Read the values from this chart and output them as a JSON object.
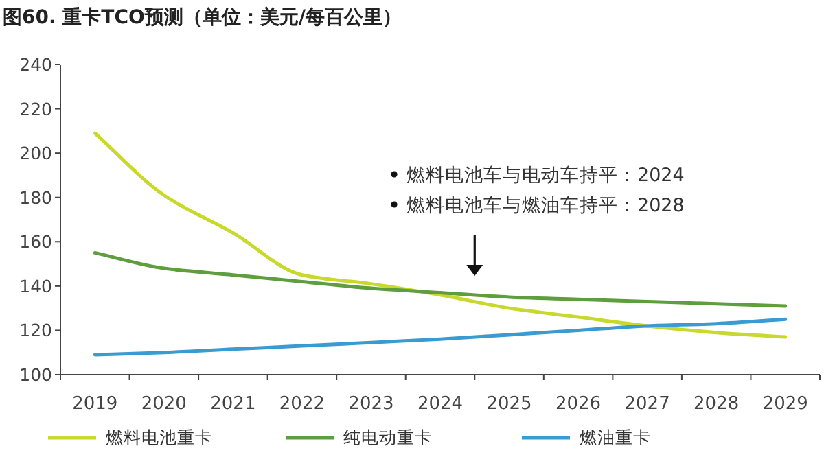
{
  "chart_data": {
    "type": "line",
    "title": "图60. 重卡TCO预测（单位：美元/每百公里）",
    "categories": [
      "2019",
      "2020",
      "2021",
      "2022",
      "2023",
      "2024",
      "2025",
      "2026",
      "2027",
      "2028",
      "2029"
    ],
    "series": [
      {
        "name": "燃料电池重卡",
        "color": "#c9d82c",
        "values": [
          209,
          181,
          164,
          145,
          141,
          136,
          130,
          126,
          122,
          119,
          117
        ]
      },
      {
        "name": "纯电动重卡",
        "color": "#5e9e3e",
        "values": [
          155,
          148,
          145,
          142,
          139,
          137,
          135,
          134,
          133,
          132,
          131
        ]
      },
      {
        "name": "燃油重卡",
        "color": "#3a9bd0",
        "values": [
          109,
          110,
          111.5,
          113,
          114.5,
          116,
          118,
          120,
          122,
          123,
          125
        ]
      }
    ],
    "ylim": [
      100,
      240
    ],
    "yticks": [
      100,
      120,
      140,
      160,
      180,
      200,
      220,
      240
    ],
    "annotations": [
      "燃料电池车与电动车持平：2024",
      "燃料电池车与燃油车持平：2028"
    ],
    "grid": false,
    "legend": "bottom",
    "marker": "none",
    "line_style": "solid"
  }
}
